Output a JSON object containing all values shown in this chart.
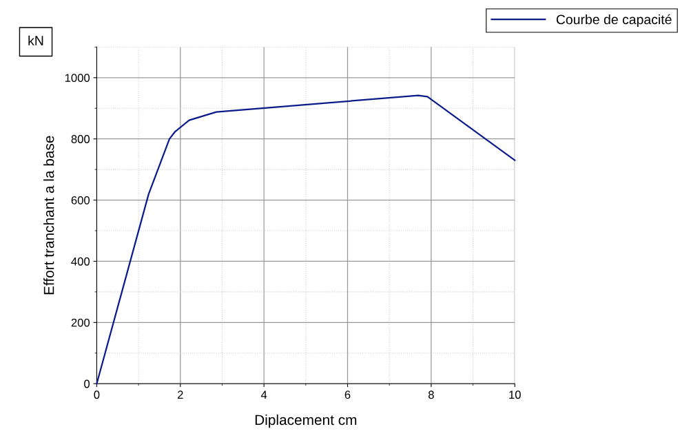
{
  "chart_data": {
    "type": "line",
    "xlabel": "Diplacement cm",
    "ylabel": "Effort tranchant a la base",
    "annotations": [
      "kN"
    ],
    "series": [
      {
        "name": "Courbe de capacité",
        "color": "#0a1a8a",
        "x": [
          0,
          1.24,
          1.74,
          1.87,
          2.21,
          2.86,
          7.69,
          7.91,
          10
        ],
        "values": [
          0,
          619,
          800,
          823,
          861,
          888,
          942,
          938,
          730
        ]
      }
    ],
    "xlim": [
      0,
      10
    ],
    "ylim": [
      0,
      1100
    ],
    "xticks": [
      0,
      2,
      4,
      6,
      8,
      10
    ],
    "yticks": [
      0,
      200,
      400,
      600,
      800,
      1000
    ],
    "grid": true,
    "legend": "top right",
    "marker": "none",
    "line_style": "solid"
  }
}
